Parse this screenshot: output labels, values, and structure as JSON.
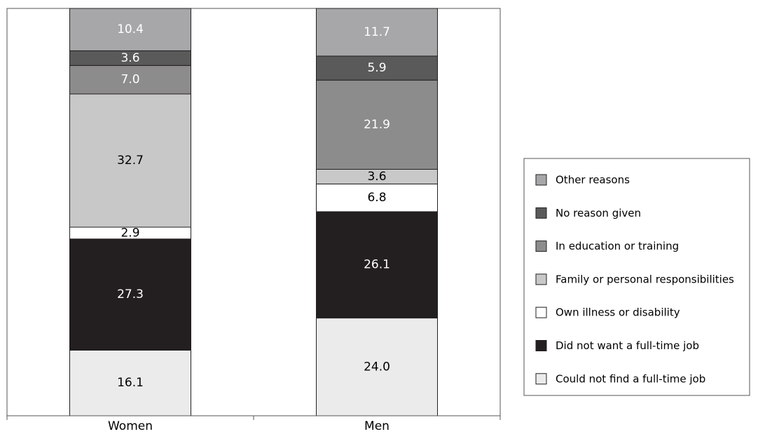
{
  "chart_data": {
    "type": "bar",
    "stacked": true,
    "stack_total": 100,
    "categories": [
      "Women",
      "Men"
    ],
    "series": [
      {
        "name": "Could not find a full-time job",
        "values": [
          16.1,
          24.0
        ],
        "color": "#ebebeb",
        "label_color": "#000000"
      },
      {
        "name": "Did not want a full-time job",
        "values": [
          27.3,
          26.1
        ],
        "color": "#231f20",
        "label_color": "#ffffff"
      },
      {
        "name": "Own illness or disability",
        "values": [
          2.9,
          6.8
        ],
        "color": "#ffffff",
        "label_color": "#000000"
      },
      {
        "name": "Family or personal responsibilities",
        "values": [
          32.7,
          3.6
        ],
        "color": "#c8c8c8",
        "label_color": "#000000"
      },
      {
        "name": "In education or training",
        "values": [
          7.0,
          21.9
        ],
        "color": "#8c8c8c",
        "label_color": "#ffffff"
      },
      {
        "name": "No reason given",
        "values": [
          3.6,
          5.9
        ],
        "color": "#5a5a5a",
        "label_color": "#ffffff"
      },
      {
        "name": "Other reasons",
        "values": [
          10.4,
          11.7
        ],
        "color": "#a7a7a9",
        "label_color": "#ffffff"
      }
    ],
    "legend_position": "right",
    "legend_order": [
      "Other reasons",
      "No reason given",
      "In education or training",
      "Family or personal responsibilities",
      "Own illness or disability",
      "Did not want a full-time job",
      "Could not find a full-time job"
    ],
    "grid": false
  }
}
